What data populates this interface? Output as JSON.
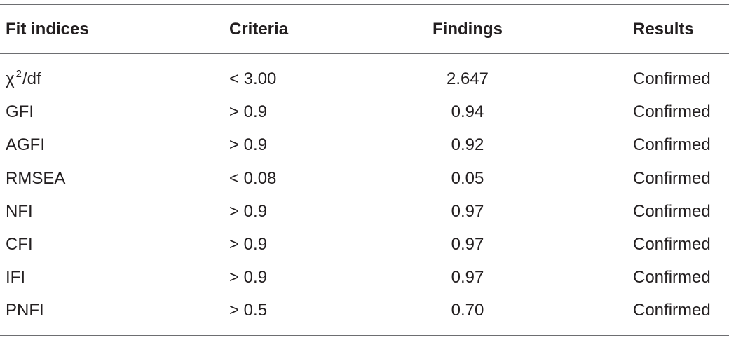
{
  "table": {
    "header": [
      "Fit indices",
      "Criteria",
      "Findings",
      "Results"
    ],
    "rows": [
      [
        {
          "base": "χ",
          "sup": "2",
          "rest": "/df"
        },
        "< 3.00",
        "2.647",
        "Confirmed"
      ],
      [
        "GFI",
        "> 0.9",
        "0.94",
        "Confirmed"
      ],
      [
        "AGFI",
        "> 0.9",
        "0.92",
        "Confirmed"
      ],
      [
        "RMSEA",
        "< 0.08",
        "0.05",
        "Confirmed"
      ],
      [
        "NFI",
        "> 0.9",
        "0.97",
        "Confirmed"
      ],
      [
        "CFI",
        "> 0.9",
        "0.97",
        "Confirmed"
      ],
      [
        "IFI",
        "> 0.9",
        "0.97",
        "Confirmed"
      ],
      [
        "PNFI",
        "> 0.5",
        "0.70",
        "Confirmed"
      ]
    ]
  }
}
